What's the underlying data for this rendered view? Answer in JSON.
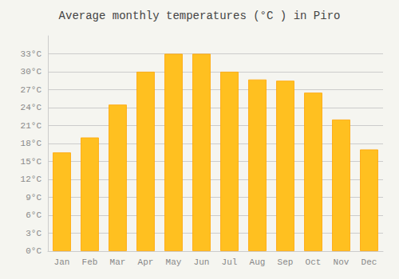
{
  "chart_data": {
    "type": "bar",
    "title": "Average monthly temperatures (°C ) in Piro",
    "categories": [
      "Jan",
      "Feb",
      "Mar",
      "Apr",
      "May",
      "Jun",
      "Jul",
      "Aug",
      "Sep",
      "Oct",
      "Nov",
      "Dec"
    ],
    "values": [
      16.5,
      19.0,
      24.5,
      30.0,
      33.0,
      33.0,
      30.0,
      28.7,
      28.5,
      26.5,
      22.0,
      17.0
    ],
    "color": "#FFC020",
    "ylim": [
      0,
      36
    ],
    "yticks": [
      {
        "value": 0,
        "label": "0°C"
      },
      {
        "value": 3,
        "label": "3°C"
      },
      {
        "value": 6,
        "label": "6°C"
      },
      {
        "value": 9,
        "label": "9°C"
      },
      {
        "value": 12,
        "label": "12°C"
      },
      {
        "value": 15,
        "label": "15°C"
      },
      {
        "value": 18,
        "label": "18°C"
      },
      {
        "value": 21,
        "label": "21°C"
      },
      {
        "value": 24,
        "label": "24°C"
      },
      {
        "value": 27,
        "label": "27°C"
      },
      {
        "value": 30,
        "label": "30°C"
      },
      {
        "value": 33,
        "label": "33°C"
      }
    ],
    "grid": true
  }
}
